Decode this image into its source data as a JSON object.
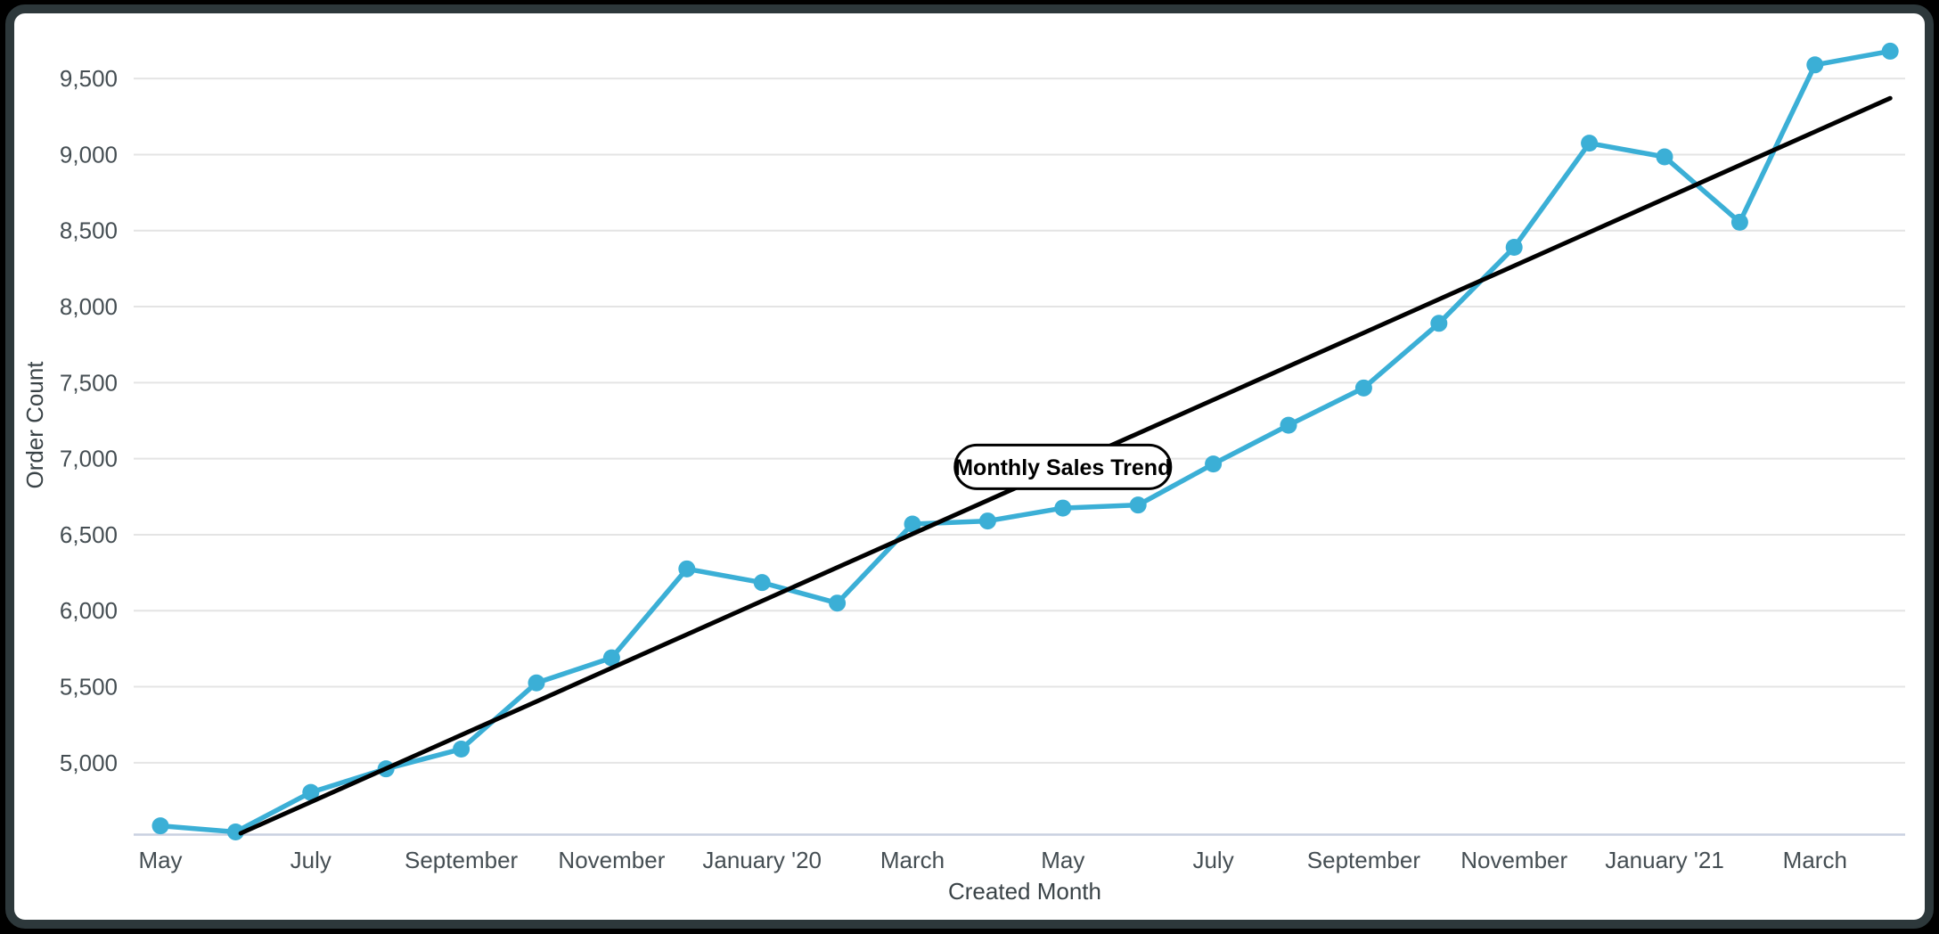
{
  "page": {
    "background_color": "#000000",
    "card_border_color": "#2d383b",
    "card_background_color": "#ffffff"
  },
  "chart_data": {
    "type": "line",
    "title": "Monthly Sales Trend",
    "xlabel": "Created Month",
    "ylabel": "Order Count",
    "x": [
      "May '19",
      "June '19",
      "July '19",
      "August '19",
      "September '19",
      "October '19",
      "November '19",
      "December '19",
      "January '20",
      "February '20",
      "March '20",
      "April '20",
      "May '20",
      "June '20",
      "July '20",
      "August '20",
      "September '20",
      "October '20",
      "November '20",
      "December '20",
      "January '21",
      "February '21",
      "March '21",
      "April '21"
    ],
    "series": [
      {
        "name": "Order Count",
        "color": "#3BAFD6",
        "values": [
          4585,
          4545,
          4805,
          4960,
          5090,
          5525,
          5690,
          6275,
          6185,
          6050,
          6570,
          6590,
          6675,
          6695,
          6965,
          7220,
          7465,
          7890,
          8390,
          9075,
          8985,
          8555,
          9590,
          9680
        ]
      }
    ],
    "trendline": {
      "label": "Monthly Sales Trend",
      "method": "linear-regression",
      "color": "#000000",
      "label_anchor_month_index": 12
    },
    "x_tick_indices": [
      0,
      2,
      4,
      6,
      8,
      10,
      12,
      14,
      16,
      18,
      20,
      22
    ],
    "x_tick_labels": [
      "May",
      "July",
      "September",
      "November",
      "January '20",
      "March",
      "May",
      "July",
      "September",
      "November",
      "January '21",
      "March"
    ],
    "y_ticks": [
      5000,
      5500,
      6000,
      6500,
      7000,
      7500,
      8000,
      8500,
      9000,
      9500
    ],
    "y_tick_labels": [
      "5,000",
      "5,500",
      "6,000",
      "6,500",
      "7,000",
      "7,500",
      "8,000",
      "8,500",
      "9,000",
      "9,500"
    ],
    "ylim": [
      4536,
      9912
    ],
    "grid": true,
    "legend_position": "none",
    "colors": {
      "grid_line": "#E4E4E4",
      "axis_line": "#C9D1E0",
      "tick_label": "#454E53",
      "axis_title": "#3A4347",
      "trend_label_border": "#000000",
      "trend_label_background": "#ffffff"
    }
  }
}
